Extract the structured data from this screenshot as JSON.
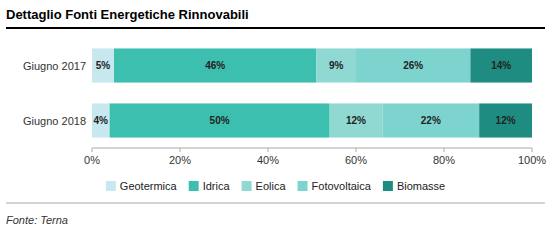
{
  "chart_data": {
    "type": "bar",
    "orientation": "horizontal",
    "stacked": true,
    "data_labels": true,
    "title": "Dettaglio Fonti Energetiche Rinnovabili",
    "annotations": [
      "Fonte: Terna"
    ],
    "categories": [
      "Giugno 2017",
      "Giugno 2018"
    ],
    "series": [
      {
        "name": "Geotermica",
        "color": "#c8e8ef",
        "values": [
          5,
          4
        ],
        "value_labels": [
          "5%",
          "4%"
        ]
      },
      {
        "name": "Idrica",
        "color": "#3dbfb0",
        "values": [
          46,
          50
        ],
        "value_labels": [
          "46%",
          "50%"
        ]
      },
      {
        "name": "Eolica",
        "color": "#90d8d2",
        "values": [
          9,
          12
        ],
        "value_labels": [
          "9%",
          "12%"
        ]
      },
      {
        "name": "Fotovoltaica",
        "color": "#7dd4cf",
        "values": [
          26,
          22
        ],
        "value_labels": [
          "26%",
          "22%"
        ]
      },
      {
        "name": "Biomasse",
        "color": "#1e8c80",
        "values": [
          14,
          12
        ],
        "value_labels": [
          "14%",
          "12%"
        ]
      }
    ],
    "xlim": [
      0,
      100
    ],
    "xticks": [
      {
        "value": 0,
        "label": "0%"
      },
      {
        "value": 20,
        "label": "20%"
      },
      {
        "value": 40,
        "label": "40%"
      },
      {
        "value": 60,
        "label": "60%"
      },
      {
        "value": 80,
        "label": "80%"
      },
      {
        "value": 100,
        "label": "100%"
      }
    ],
    "grid": false,
    "legend": "bottom"
  }
}
